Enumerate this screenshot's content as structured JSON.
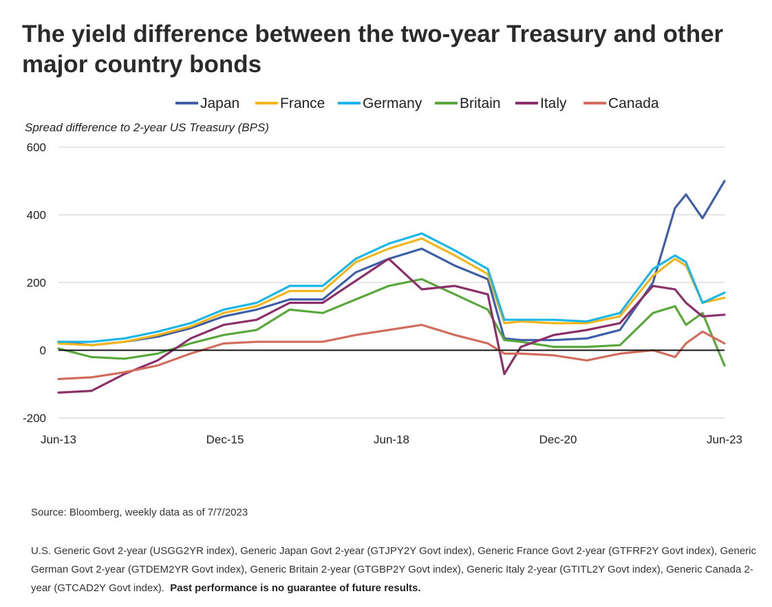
{
  "title": "The yield difference between the two-year Treasury and other major country bonds",
  "source": "Source: Bloomberg, weekly data as of 7/7/2023",
  "notes": "U.S. Generic Govt 2-year (USGG2YR index), Generic Japan Govt 2-year (GTJPY2Y Govt index), Generic France Govt 2-year (GTFRF2Y Govt index), Generic German Govt 2-year (GTDEM2YR Govt index), Generic Britain 2-year (GTGBP2Y Govt index), Generic Italy 2-year (GTITL2Y Govt index), Generic Canada 2-year (GTCAD2Y Govt index).",
  "disclaimer": "Past performance is no guarantee of future results.",
  "chart_data": {
    "type": "line",
    "title": "The yield difference between the two-year Treasury and other major country bonds",
    "ylabel": "Spread difference to 2-year US Treasury (BPS)",
    "xlabel": "",
    "x_ticks": [
      "Jun-13",
      "Dec-15",
      "Jun-18",
      "Dec-20",
      "Jun-23"
    ],
    "y_ticks": [
      600,
      400,
      200,
      0,
      -200
    ],
    "xlim": [
      "2013-06",
      "2023-07"
    ],
    "ylim": [
      -200,
      600
    ],
    "grid": true,
    "legend_position": "top",
    "x": [
      "2013-06",
      "2013-12",
      "2014-06",
      "2014-12",
      "2015-06",
      "2015-12",
      "2016-06",
      "2016-12",
      "2017-06",
      "2017-12",
      "2018-06",
      "2018-12",
      "2019-06",
      "2019-12",
      "2020-03",
      "2020-06",
      "2020-12",
      "2021-06",
      "2021-12",
      "2022-06",
      "2022-10",
      "2022-12",
      "2023-03",
      "2023-07"
    ],
    "series": [
      {
        "name": "Japan",
        "color": "#3e5fa8",
        "values": [
          25,
          15,
          25,
          40,
          65,
          100,
          120,
          150,
          150,
          230,
          270,
          300,
          250,
          210,
          35,
          30,
          30,
          35,
          60,
          200,
          420,
          460,
          390,
          500
        ]
      },
      {
        "name": "France",
        "color": "#f2b51c",
        "values": [
          20,
          15,
          25,
          45,
          70,
          110,
          130,
          175,
          175,
          260,
          300,
          330,
          280,
          225,
          80,
          85,
          80,
          80,
          100,
          220,
          270,
          250,
          140,
          155
        ]
      },
      {
        "name": "Germany",
        "color": "#1ab6e8",
        "values": [
          25,
          25,
          35,
          55,
          80,
          120,
          140,
          190,
          190,
          270,
          315,
          345,
          295,
          240,
          90,
          90,
          90,
          85,
          110,
          240,
          280,
          260,
          140,
          170
        ]
      },
      {
        "name": "Britain",
        "color": "#59a83c",
        "values": [
          5,
          -20,
          -25,
          -10,
          20,
          45,
          60,
          120,
          110,
          150,
          190,
          210,
          165,
          120,
          30,
          25,
          10,
          10,
          15,
          110,
          130,
          75,
          110,
          -45
        ]
      },
      {
        "name": "Italy",
        "color": "#8b2f6b",
        "values": [
          -125,
          -120,
          -70,
          -30,
          35,
          75,
          90,
          140,
          140,
          205,
          270,
          180,
          190,
          165,
          -70,
          10,
          45,
          60,
          80,
          190,
          180,
          140,
          100,
          105
        ]
      },
      {
        "name": "Canada",
        "color": "#d26c5c",
        "values": [
          -85,
          -80,
          -65,
          -45,
          -10,
          20,
          25,
          25,
          25,
          45,
          60,
          75,
          45,
          20,
          -10,
          -10,
          -15,
          -30,
          -10,
          0,
          -20,
          20,
          55,
          20
        ]
      }
    ]
  }
}
